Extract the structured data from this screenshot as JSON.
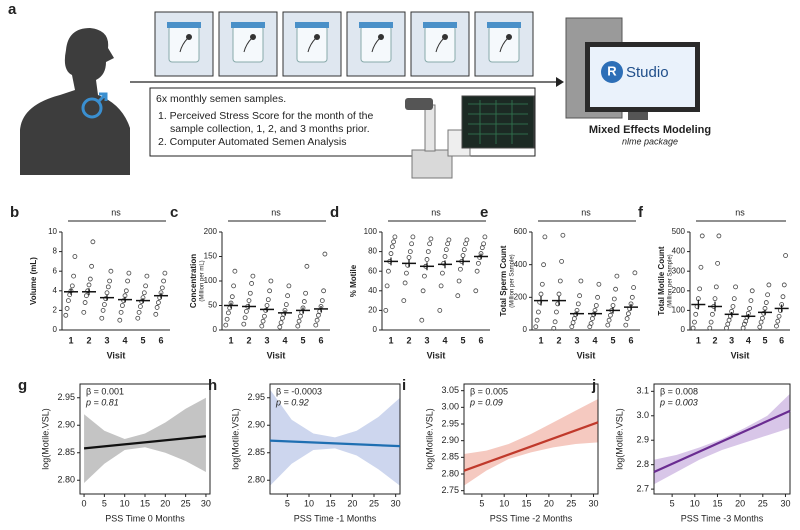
{
  "panel_a": {
    "label": "a",
    "box_title": "6x monthly semen samples.",
    "items": [
      "1. Perceived Stress Score for the month of the sample collection, 1, 2, and 3 months prior.",
      "2. Computer Automated Semen Analysis"
    ],
    "software_logo": "R",
    "software": "Studio",
    "method": "Mixed Effects Modeling",
    "package": "nlme package"
  },
  "chart_data": [
    {
      "type": "strip",
      "panel": "b",
      "ylabel": "Volume (mL)",
      "xlabel": "Visit",
      "annotation": "ns",
      "categories": [
        "1",
        "2",
        "3",
        "4",
        "5",
        "6"
      ],
      "ylim": [
        0,
        10
      ],
      "yticks": [
        0,
        2,
        4,
        6,
        8,
        10
      ],
      "values": [
        [
          1.5,
          2.2,
          3.0,
          3.6,
          4.0,
          4.5,
          5.5,
          7.5
        ],
        [
          1.8,
          2.8,
          3.5,
          4.0,
          4.6,
          5.2,
          6.5,
          9.0
        ],
        [
          1.2,
          2.0,
          2.6,
          3.2,
          3.8,
          4.4,
          5.0,
          6.0
        ],
        [
          1.0,
          1.8,
          2.5,
          3.0,
          3.5,
          4.0,
          5.0,
          5.8
        ],
        [
          1.2,
          1.8,
          2.4,
          2.9,
          3.3,
          3.8,
          4.5,
          5.5
        ],
        [
          1.6,
          2.3,
          2.8,
          3.3,
          3.8,
          4.3,
          5.0,
          5.8
        ]
      ],
      "mean": [
        3.9,
        3.9,
        3.3,
        3.1,
        3.0,
        3.5
      ],
      "error": [
        0.3,
        0.35,
        0.3,
        0.3,
        0.25,
        0.3
      ]
    },
    {
      "type": "strip",
      "panel": "c",
      "ylabel": "Concentration",
      "ylabel_sub": "(Million per mL)",
      "xlabel": "Visit",
      "annotation": "ns",
      "categories": [
        "1",
        "2",
        "3",
        "4",
        "5",
        "6"
      ],
      "ylim": [
        0,
        200
      ],
      "yticks": [
        0,
        50,
        100,
        150,
        200
      ],
      "values": [
        [
          10,
          22,
          35,
          45,
          55,
          68,
          90,
          120
        ],
        [
          12,
          25,
          38,
          48,
          60,
          75,
          95,
          110
        ],
        [
          8,
          18,
          28,
          40,
          50,
          62,
          80,
          100
        ],
        [
          6,
          15,
          24,
          32,
          40,
          52,
          70,
          90
        ],
        [
          8,
          18,
          28,
          36,
          45,
          58,
          75,
          130
        ],
        [
          10,
          20,
          30,
          38,
          48,
          60,
          80,
          155
        ]
      ],
      "mean": [
        50,
        48,
        42,
        35,
        40,
        43
      ],
      "error": [
        6,
        6,
        5,
        5,
        6,
        6
      ]
    },
    {
      "type": "strip",
      "panel": "d",
      "ylabel": "% Motile",
      "xlabel": "Visit",
      "annotation": "ns",
      "categories": [
        "1",
        "2",
        "3",
        "4",
        "5",
        "6"
      ],
      "ylim": [
        0,
        100
      ],
      "yticks": [
        0,
        20,
        40,
        60,
        80,
        100
      ],
      "values": [
        [
          20,
          45,
          60,
          70,
          78,
          85,
          90,
          95
        ],
        [
          30,
          48,
          58,
          66,
          74,
          80,
          88,
          95
        ],
        [
          10,
          40,
          55,
          65,
          72,
          80,
          88,
          93
        ],
        [
          20,
          45,
          58,
          68,
          75,
          82,
          88,
          92
        ],
        [
          35,
          50,
          62,
          70,
          76,
          82,
          88,
          92
        ],
        [
          40,
          60,
          68,
          74,
          78,
          84,
          88,
          95
        ]
      ],
      "mean": [
        70,
        68,
        65,
        67,
        70,
        75
      ],
      "error": [
        4,
        4,
        4,
        4,
        4,
        3
      ]
    },
    {
      "type": "strip",
      "panel": "e",
      "ylabel": "Total Sperm Count",
      "ylabel_sub": "(Million per Sample)",
      "xlabel": "Visit",
      "annotation": "ns",
      "categories": [
        "1",
        "2",
        "3",
        "4",
        "5",
        "6"
      ],
      "ylim": [
        0,
        600
      ],
      "yticks": [
        0,
        200,
        400,
        600
      ],
      "values": [
        [
          20,
          60,
          110,
          170,
          220,
          280,
          400,
          570
        ],
        [
          10,
          50,
          110,
          160,
          220,
          300,
          420,
          580
        ],
        [
          20,
          45,
          70,
          95,
          120,
          160,
          210,
          300
        ],
        [
          20,
          40,
          70,
          95,
          120,
          150,
          200,
          280
        ],
        [
          30,
          60,
          90,
          120,
          150,
          190,
          250,
          330
        ],
        [
          30,
          70,
          100,
          130,
          160,
          200,
          260,
          350
        ]
      ],
      "mean": [
        180,
        180,
        100,
        100,
        120,
        140
      ],
      "error": [
        30,
        30,
        15,
        15,
        20,
        20
      ]
    },
    {
      "type": "strip",
      "panel": "f",
      "ylabel": "Total Motile Count",
      "ylabel_sub": "(Million per Sample)",
      "xlabel": "Visit",
      "annotation": "ns",
      "categories": [
        "1",
        "2",
        "3",
        "4",
        "5",
        "6"
      ],
      "ylim": [
        0,
        500
      ],
      "yticks": [
        0,
        100,
        200,
        300,
        400,
        500
      ],
      "values": [
        [
          10,
          40,
          80,
          120,
          160,
          210,
          320,
          480
        ],
        [
          10,
          40,
          80,
          120,
          160,
          220,
          340,
          480
        ],
        [
          10,
          30,
          50,
          70,
          95,
          120,
          160,
          220
        ],
        [
          10,
          30,
          45,
          65,
          85,
          110,
          150,
          200
        ],
        [
          15,
          40,
          60,
          85,
          110,
          140,
          180,
          230
        ],
        [
          20,
          45,
          70,
          100,
          130,
          170,
          230,
          380
        ]
      ],
      "mean": [
        130,
        120,
        80,
        70,
        90,
        110
      ],
      "error": [
        25,
        25,
        12,
        12,
        15,
        20
      ]
    },
    {
      "type": "line",
      "panel": "g",
      "ylabel": "log(Motile.VSL)",
      "xlabel": "PSS Time 0 Months",
      "beta": "β = 0.001",
      "p": "p = 0.81",
      "color": "#111111",
      "band_color": "#c4c4c4",
      "xlim": [
        -1,
        31
      ],
      "xticks": [
        0,
        5,
        10,
        15,
        20,
        25,
        30
      ],
      "ylim": [
        2.775,
        2.975
      ],
      "yticks": [
        {
          "value": 2.8,
          "label": "2.80"
        },
        2.85,
        {
          "value": 2.9,
          "label": "2.90"
        },
        2.95
      ],
      "x": [
        0,
        30
      ],
      "values": [
        2.858,
        2.88
      ],
      "band_x": [
        0,
        5,
        10,
        15,
        20,
        25,
        30
      ],
      "band_lower": [
        2.795,
        2.83,
        2.855,
        2.86,
        2.85,
        2.835,
        2.815
      ],
      "band_upper": [
        2.92,
        2.89,
        2.875,
        2.885,
        2.905,
        2.93,
        2.95
      ]
    },
    {
      "type": "line",
      "panel": "h",
      "ylabel": "log(Motile.VSL)",
      "xlabel": "PSS Time -1 Months",
      "beta": "β = -0.0003",
      "p": "p = 0.92",
      "color": "#1f6fb2",
      "band_color": "#cdd6ee",
      "xlim": [
        1,
        31
      ],
      "xticks": [
        5,
        10,
        15,
        20,
        25,
        30
      ],
      "ylim": [
        2.775,
        2.975
      ],
      "yticks": [
        {
          "value": 2.8,
          "label": "2.80"
        },
        2.85,
        {
          "value": 2.9,
          "label": "2.90"
        },
        2.95
      ],
      "x": [
        1,
        31
      ],
      "values": [
        2.872,
        2.862
      ],
      "band_x": [
        1,
        6,
        11,
        16,
        21,
        26,
        31
      ],
      "band_lower": [
        2.79,
        2.83,
        2.855,
        2.858,
        2.845,
        2.82,
        2.79
      ],
      "band_upper": [
        2.965,
        2.91,
        2.885,
        2.878,
        2.89,
        2.915,
        2.95
      ]
    },
    {
      "type": "line",
      "panel": "i",
      "ylabel": "log(Motile.VSL)",
      "xlabel": "PSS Time -2 Months",
      "beta": "β = 0.005",
      "p": "p = 0.09",
      "color": "#c0392b",
      "band_color": "#f5c9c0",
      "xlim": [
        1,
        31
      ],
      "xticks": [
        5,
        10,
        15,
        20,
        25,
        30
      ],
      "ylim": [
        2.74,
        3.07
      ],
      "yticks": [
        2.75,
        {
          "value": 2.8,
          "label": "2.80"
        },
        2.85,
        {
          "value": 2.9,
          "label": "2.90"
        },
        2.95,
        {
          "value": 3.0,
          "label": "3.00"
        },
        3.05
      ],
      "x": [
        1,
        31
      ],
      "values": [
        2.81,
        2.955
      ],
      "band_x": [
        1,
        6,
        11,
        16,
        21,
        26,
        31
      ],
      "band_lower": [
        2.765,
        2.81,
        2.845,
        2.865,
        2.88,
        2.89,
        2.895
      ],
      "band_upper": [
        2.86,
        2.87,
        2.89,
        2.92,
        2.955,
        2.99,
        3.025
      ]
    },
    {
      "type": "line",
      "panel": "j",
      "ylabel": "log(Motile.VSL)",
      "xlabel": "PSS Time -3 Months",
      "beta": "β = 0.008",
      "p": "p = 0.003",
      "color": "#6a2c91",
      "band_color": "#d8c6e8",
      "xlim": [
        1,
        31
      ],
      "xticks": [
        5,
        10,
        15,
        20,
        25,
        30
      ],
      "ylim": [
        2.68,
        3.13
      ],
      "yticks": [
        2.7,
        2.8,
        2.9,
        {
          "value": 3.0,
          "label": "3.0"
        },
        3.1
      ],
      "x": [
        1,
        31
      ],
      "values": [
        2.77,
        3.02
      ],
      "band_x": [
        1,
        6,
        11,
        16,
        21,
        26,
        31
      ],
      "band_lower": [
        2.72,
        2.77,
        2.82,
        2.86,
        2.89,
        2.92,
        2.95
      ],
      "band_upper": [
        2.82,
        2.84,
        2.87,
        2.905,
        2.95,
        3.0,
        3.09
      ]
    }
  ]
}
